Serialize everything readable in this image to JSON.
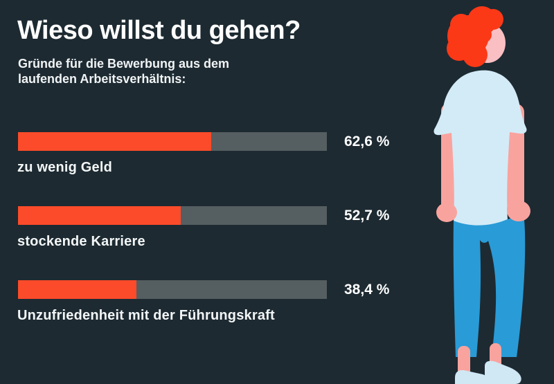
{
  "header": {
    "title": "Wieso willst du gehen?",
    "subtitle": "Gründe für die Bewerbung aus dem\nlaufenden Arbeitsverhältnis:"
  },
  "chart_data": {
    "type": "bar",
    "orientation": "horizontal",
    "title": "Wieso willst du gehen?",
    "subtitle": "Gründe für die Bewerbung aus dem laufenden Arbeitsverhältnis:",
    "categories": [
      "zu wenig Geld",
      "stockende Karriere",
      "Unzufriedenheit mit der Führungskraft"
    ],
    "values": [
      62.6,
      52.7,
      38.4
    ],
    "value_labels": [
      "62,6 %",
      "52,7 %",
      "38,4 %"
    ],
    "unit": "%",
    "xlim": [
      0,
      100
    ],
    "grid": false,
    "legend": false,
    "bar_color": "#fc4b2a",
    "track_color": "#555e60"
  },
  "colors": {
    "background": "#1d2a32",
    "accent": "#fc4b2a",
    "track": "#555e60",
    "text": "#ffffff",
    "hair": "#fb3917",
    "skin": "#f9a39e",
    "skin_light": "#f9bfc2",
    "shirt": "#d3ebf6",
    "jeans": "#299bd7",
    "shoes": "#cfe8f4"
  },
  "illustration": {
    "name": "person-back-view"
  }
}
